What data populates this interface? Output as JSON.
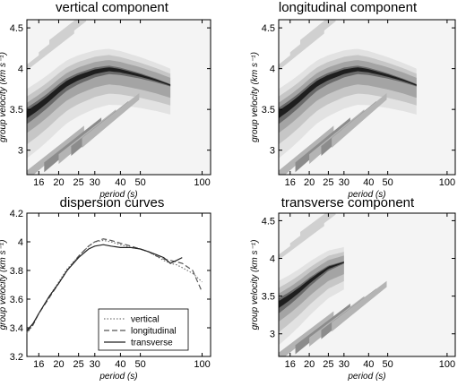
{
  "figure": {
    "panels": [
      {
        "id": "p1",
        "title": "vertical component"
      },
      {
        "id": "p2",
        "title": "longitudinal component"
      },
      {
        "id": "p3",
        "title": "dispersion curves"
      },
      {
        "id": "p4",
        "title": "transverse component"
      }
    ]
  },
  "chart_data": [
    {
      "type": "heatmap",
      "title": "vertical component",
      "xlabel": "period (s)",
      "ylabel": "group velocity (km s⁻¹)",
      "xscale": "log",
      "xlim": [
        14,
        110
      ],
      "ylim": [
        2.7,
        4.6
      ],
      "xticks": [
        16,
        20,
        25,
        30,
        40,
        50,
        100
      ],
      "yticks": [
        3,
        3.5,
        4,
        4.5
      ],
      "ridge": {
        "x": [
          14,
          16,
          18,
          20,
          22,
          25,
          30,
          35,
          40,
          50,
          60,
          70
        ],
        "y": [
          3.45,
          3.55,
          3.65,
          3.75,
          3.83,
          3.9,
          3.97,
          4.0,
          3.98,
          3.92,
          3.86,
          3.8
        ]
      },
      "colormap": "gray, darker = higher amplitude"
    },
    {
      "type": "heatmap",
      "title": "longitudinal component",
      "xlabel": "period (s)",
      "ylabel": "group velocity (km s⁻¹)",
      "xscale": "log",
      "xlim": [
        14,
        110
      ],
      "ylim": [
        2.7,
        4.6
      ],
      "xticks": [
        16,
        20,
        25,
        30,
        40,
        50,
        100
      ],
      "yticks": [
        3,
        3.5,
        4,
        4.5
      ],
      "ridge": {
        "x": [
          14,
          16,
          18,
          20,
          22,
          25,
          30,
          35,
          40,
          50,
          60,
          70
        ],
        "y": [
          3.45,
          3.55,
          3.65,
          3.75,
          3.83,
          3.9,
          3.97,
          4.0,
          3.98,
          3.92,
          3.86,
          3.8
        ]
      },
      "colormap": "gray, darker = higher amplitude"
    },
    {
      "type": "line",
      "title": "dispersion curves",
      "xlabel": "period (s)",
      "ylabel": "group velocity (km s⁻¹)",
      "xscale": "log",
      "xlim": [
        14,
        110
      ],
      "ylim": [
        3.2,
        4.2
      ],
      "xticks": [
        16,
        20,
        25,
        30,
        40,
        50,
        100
      ],
      "yticks": [
        3.2,
        3.4,
        3.6,
        3.8,
        4,
        4.2
      ],
      "legend_position": "bottom-center",
      "series": [
        {
          "name": "vertical",
          "style": "dotted",
          "x": [
            14,
            15,
            16,
            18,
            20,
            22,
            25,
            28,
            30,
            33,
            36,
            40,
            45,
            50,
            55,
            60,
            65,
            70,
            75,
            80,
            90,
            100
          ],
          "y": [
            3.36,
            3.42,
            3.5,
            3.62,
            3.72,
            3.81,
            3.9,
            3.97,
            4.0,
            4.01,
            4.0,
            3.98,
            3.96,
            3.95,
            3.93,
            3.9,
            3.87,
            3.85,
            3.84,
            3.82,
            3.78,
            3.72
          ]
        },
        {
          "name": "longitudinal",
          "style": "dashed",
          "x": [
            14,
            15,
            16,
            18,
            20,
            22,
            25,
            28,
            30,
            33,
            36,
            40,
            45,
            50,
            55,
            60,
            65,
            70,
            75,
            80,
            90,
            100
          ],
          "y": [
            3.37,
            3.42,
            3.5,
            3.61,
            3.71,
            3.8,
            3.9,
            3.97,
            4.0,
            4.02,
            4.01,
            3.99,
            3.97,
            3.95,
            3.93,
            3.9,
            3.88,
            3.87,
            3.86,
            3.85,
            3.8,
            3.65
          ]
        },
        {
          "name": "transverse",
          "style": "solid",
          "x": [
            14,
            15,
            16,
            18,
            20,
            22,
            25,
            28,
            30,
            33,
            36,
            40,
            45,
            50,
            55,
            60,
            65,
            70,
            75,
            80
          ],
          "y": [
            3.38,
            3.43,
            3.5,
            3.62,
            3.71,
            3.8,
            3.89,
            3.95,
            3.97,
            3.98,
            3.97,
            3.96,
            3.96,
            3.95,
            3.93,
            3.91,
            3.89,
            3.85,
            3.87,
            3.89
          ]
        }
      ]
    },
    {
      "type": "heatmap",
      "title": "transverse component",
      "xlabel": "period (s)",
      "ylabel": "group velocity (km s⁻¹)",
      "xscale": "log",
      "xlim": [
        14,
        110
      ],
      "ylim": [
        2.7,
        4.6
      ],
      "xticks": [
        16,
        20,
        25,
        30,
        40,
        50,
        100
      ],
      "yticks": [
        3,
        3.5,
        4,
        4.5
      ],
      "ridge": {
        "x": [
          14,
          16,
          18,
          20,
          22,
          25,
          30
        ],
        "y": [
          3.4,
          3.5,
          3.6,
          3.7,
          3.78,
          3.88,
          3.95
        ]
      },
      "colormap": "gray, darker = higher amplitude"
    }
  ]
}
